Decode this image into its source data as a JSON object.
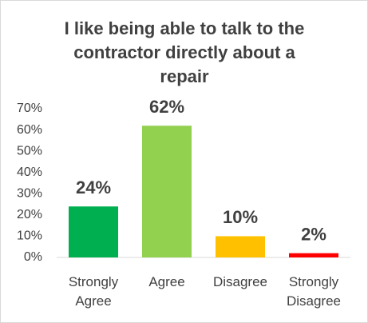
{
  "chart_data": {
    "type": "bar",
    "title": "I like being able to talk to the contractor directly about a repair",
    "categories": [
      "Strongly Agree",
      "Agree",
      "Disagree",
      "Strongly Disagree"
    ],
    "values": [
      24,
      62,
      10,
      2
    ],
    "value_labels": [
      "24%",
      "62%",
      "10%",
      "2%"
    ],
    "colors": [
      "#00b050",
      "#92d050",
      "#ffc000",
      "#ff0000"
    ],
    "ylim": [
      0,
      70
    ],
    "yticks": [
      {
        "value": 0,
        "label": "0%"
      },
      {
        "value": 10,
        "label": "10%"
      },
      {
        "value": 20,
        "label": "20%"
      },
      {
        "value": 30,
        "label": "30%"
      },
      {
        "value": 40,
        "label": "40%"
      },
      {
        "value": 50,
        "label": "50%"
      },
      {
        "value": 60,
        "label": "60%"
      },
      {
        "value": 70,
        "label": "70%"
      }
    ],
    "grid": false
  }
}
